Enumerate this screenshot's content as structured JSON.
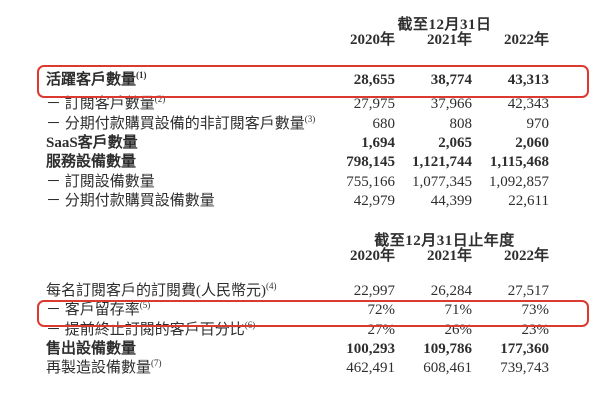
{
  "page": {
    "text_color": "#2e2e2e",
    "highlight_color": "#dc3a30"
  },
  "table1": {
    "period_header": "截至12月31日",
    "years": [
      "2020年",
      "2021年",
      "2022年"
    ],
    "rows": [
      {
        "label": "活躍客戶數量",
        "sup": "(1)",
        "bold": true,
        "highlighted": true,
        "values": [
          "28,655",
          "38,774",
          "43,313"
        ]
      },
      {
        "label": "－ 訂閱客戶數量",
        "sup": "(2)",
        "bold": false,
        "highlighted": false,
        "values": [
          "27,975",
          "37,966",
          "42,343"
        ]
      },
      {
        "label": "－ 分期付款購買設備的非訂閱客戶數量",
        "sup": "(3)",
        "bold": false,
        "highlighted": false,
        "values": [
          "680",
          "808",
          "970"
        ]
      },
      {
        "label": "SaaS客戶數量",
        "sup": "",
        "bold": true,
        "highlighted": false,
        "values": [
          "1,694",
          "2,065",
          "2,060"
        ]
      },
      {
        "label": "服務設備數量",
        "sup": "",
        "bold": true,
        "highlighted": false,
        "values": [
          "798,145",
          "1,121,744",
          "1,115,468"
        ]
      },
      {
        "label": "－ 訂閱設備數量",
        "sup": "",
        "bold": false,
        "highlighted": false,
        "values": [
          "755,166",
          "1,077,345",
          "1,092,857"
        ]
      },
      {
        "label": "－ 分期付款購買設備數量",
        "sup": "",
        "bold": false,
        "highlighted": false,
        "values": [
          "42,979",
          "44,399",
          "22,611"
        ]
      }
    ]
  },
  "table2": {
    "period_header": "截至12月31日止年度",
    "years": [
      "2020年",
      "2021年",
      "2022年"
    ],
    "rows": [
      {
        "label": "每名訂閱客戶的訂閱費(人民幣元)",
        "sup": "(4)",
        "bold": false,
        "highlighted": false,
        "values": [
          "22,997",
          "26,284",
          "27,517"
        ]
      },
      {
        "label": "－ 客戶留存率",
        "sup": "(5)",
        "bold": false,
        "highlighted": true,
        "values": [
          "72%",
          "71%",
          "73%"
        ]
      },
      {
        "label": "－ 提前終止訂閱的客戶百分比",
        "sup": "(6)",
        "bold": false,
        "highlighted": false,
        "values": [
          "27%",
          "26%",
          "23%"
        ]
      },
      {
        "label": "售出設備數量",
        "sup": "",
        "bold": true,
        "highlighted": false,
        "values": [
          "100,293",
          "109,786",
          "177,360"
        ]
      },
      {
        "label": "再製造設備數量",
        "sup": "(7)",
        "bold": false,
        "highlighted": false,
        "values": [
          "462,491",
          "608,461",
          "739,743"
        ]
      }
    ]
  }
}
